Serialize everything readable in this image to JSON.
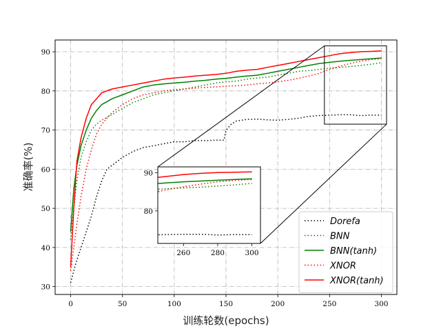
{
  "chart_data": {
    "type": "line",
    "xlabel": "训练轮数(epochs)",
    "ylabel": "准确率(%)",
    "xlim": [
      -15,
      315
    ],
    "ylim": [
      28,
      93
    ],
    "xticks": [
      0,
      50,
      100,
      150,
      200,
      250,
      300
    ],
    "yticks": [
      30,
      40,
      50,
      60,
      70,
      80,
      90
    ],
    "grid": true,
    "legend_position": "lower-right",
    "series": [
      {
        "name": "Dorefa",
        "color": "#000000",
        "dash": "dotted",
        "x": [
          0,
          5,
          10,
          15,
          20,
          25,
          30,
          35,
          40,
          45,
          50,
          60,
          70,
          80,
          90,
          100,
          110,
          120,
          130,
          140,
          148,
          150,
          155,
          160,
          170,
          180,
          190,
          200,
          210,
          220,
          230,
          240,
          250,
          260,
          270,
          280,
          290,
          300
        ],
        "y": [
          31,
          36,
          40,
          44,
          48,
          53,
          57,
          60,
          61,
          62,
          63,
          64.5,
          65.5,
          66,
          66.5,
          67,
          67,
          67.3,
          67.3,
          67.4,
          67.4,
          70,
          71.5,
          72.3,
          72.7,
          72.8,
          72.6,
          72.5,
          72.7,
          73,
          73.5,
          73.7,
          73.8,
          73.9,
          73.9,
          73.7,
          73.8,
          73.8
        ]
      },
      {
        "name": "BNN",
        "color": "#008000",
        "dash": "dotted",
        "x": [
          0,
          3,
          6,
          10,
          15,
          20,
          25,
          30,
          40,
          50,
          60,
          70,
          80,
          90,
          100,
          110,
          120,
          130,
          140,
          150,
          160,
          170,
          180,
          190,
          200,
          210,
          220,
          230,
          240,
          250,
          260,
          270,
          280,
          290,
          300
        ],
        "y": [
          42,
          50,
          57,
          63,
          67,
          70,
          71.5,
          72.5,
          74,
          75.5,
          77,
          78,
          79,
          79.5,
          80,
          80.5,
          81,
          81.5,
          82,
          82.3,
          82.5,
          83,
          83.3,
          83.5,
          84,
          84.5,
          85,
          85.2,
          85.5,
          85.8,
          86,
          86.2,
          86.5,
          86.8,
          87.2
        ]
      },
      {
        "name": "BNN(tanh)",
        "color": "#008000",
        "dash": "solid",
        "x": [
          0,
          3,
          6,
          10,
          15,
          20,
          25,
          30,
          40,
          50,
          60,
          70,
          80,
          90,
          100,
          110,
          120,
          130,
          140,
          150,
          160,
          170,
          180,
          190,
          200,
          210,
          220,
          230,
          240,
          250,
          260,
          270,
          280,
          290,
          300
        ],
        "y": [
          44,
          55,
          61,
          66,
          70,
          73,
          75,
          76.5,
          78,
          79,
          80,
          81,
          81.5,
          81.8,
          82,
          82.2,
          82.5,
          82.7,
          83,
          83.2,
          83.5,
          83.8,
          84,
          84.5,
          85,
          85.5,
          86,
          86.5,
          87,
          87.3,
          87.6,
          87.8,
          88,
          88.2,
          88.4
        ]
      },
      {
        "name": "XNOR",
        "color": "#ff0000",
        "dash": "dotted",
        "x": [
          0,
          3,
          6,
          10,
          15,
          20,
          25,
          30,
          40,
          50,
          60,
          70,
          80,
          90,
          100,
          110,
          120,
          130,
          140,
          150,
          160,
          170,
          180,
          190,
          200,
          210,
          220,
          230,
          240,
          250,
          260,
          270,
          280,
          290,
          300
        ],
        "y": [
          34,
          40,
          46,
          53,
          60,
          65,
          69,
          71.5,
          74.5,
          76.5,
          78,
          79,
          79.5,
          80,
          80.3,
          80.5,
          80.7,
          80.9,
          81,
          81.2,
          81.3,
          81.5,
          81.8,
          82,
          82.3,
          82.7,
          83.2,
          83.8,
          84.5,
          85.5,
          86.3,
          87,
          87.6,
          88,
          88.2
        ]
      },
      {
        "name": "XNOR(tanh)",
        "color": "#ff0000",
        "dash": "solid",
        "x": [
          0,
          3,
          6,
          10,
          15,
          20,
          25,
          30,
          40,
          50,
          60,
          70,
          80,
          90,
          100,
          110,
          120,
          130,
          140,
          150,
          160,
          170,
          180,
          190,
          200,
          210,
          220,
          230,
          240,
          250,
          260,
          270,
          280,
          290,
          300
        ],
        "y": [
          35,
          50,
          62,
          68,
          73,
          76.5,
          78,
          79.5,
          80.5,
          81,
          81.5,
          82,
          82.5,
          83,
          83.3,
          83.5,
          83.8,
          84,
          84.2,
          84.5,
          85,
          85.3,
          85.5,
          86,
          86.5,
          87,
          87.5,
          88,
          88.5,
          89,
          89.5,
          89.8,
          90,
          90.1,
          90.2
        ]
      }
    ],
    "inset": {
      "xlim": [
        245,
        305
      ],
      "ylim": [
        71.5,
        91.5
      ],
      "xticks": [
        260,
        280,
        300
      ],
      "yticks": [
        80,
        90
      ]
    }
  }
}
